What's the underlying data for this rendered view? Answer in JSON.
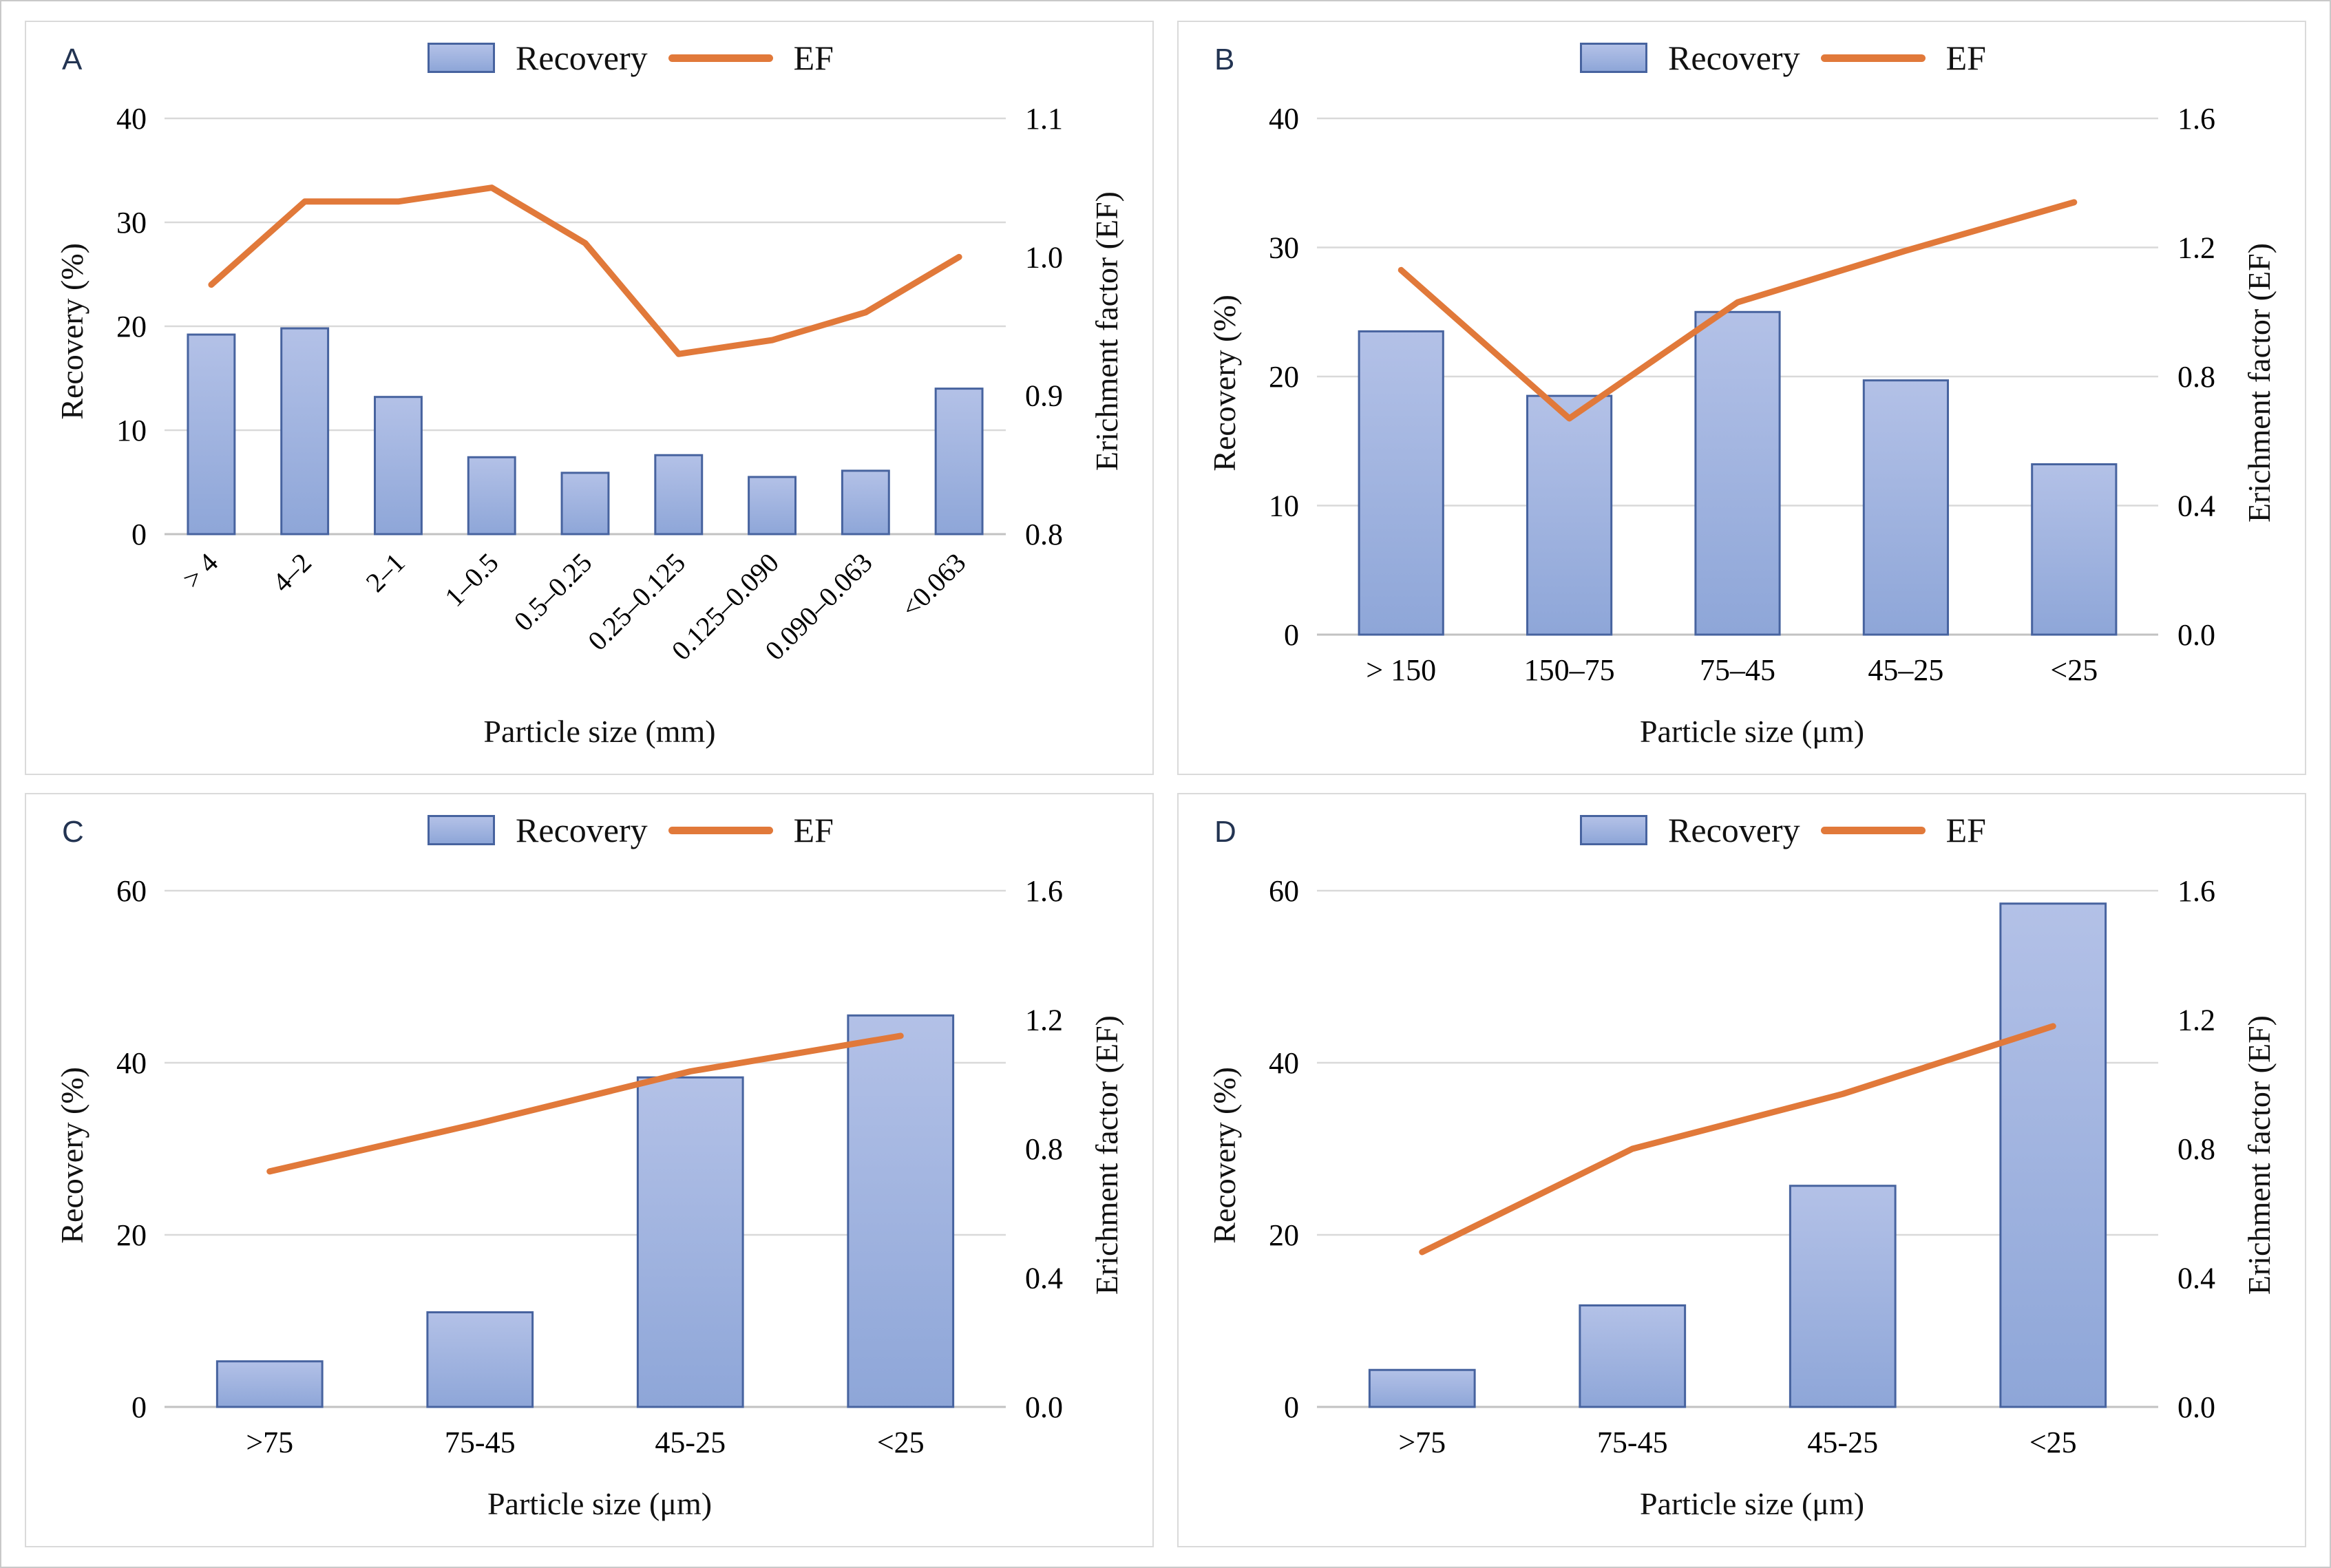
{
  "legend": {
    "recovery_label": "Recovery",
    "ef_label": "EF"
  },
  "colors": {
    "bar_fill_top": "#b3c1e7",
    "bar_fill_bottom": "#8ea6d8",
    "bar_border": "#47639f",
    "line": "#e1793a",
    "gridline": "#d9d9d9",
    "baseline": "#c2c2c2",
    "text": "#000000"
  },
  "chart_data": [
    {
      "panel_label": "A",
      "type": "bar",
      "categories": [
        "> 4",
        "4–2",
        "2–1",
        "1–0.5",
        "0.5–0.25",
        "0.25–0.125",
        "0.125–0.090",
        "0.090–0.063",
        "<0.063"
      ],
      "series": [
        {
          "name": "Recovery",
          "type": "bar",
          "axis": "left",
          "values": [
            19.2,
            19.8,
            13.2,
            7.4,
            5.9,
            7.6,
            5.5,
            6.1,
            14.0
          ]
        },
        {
          "name": "EF",
          "type": "line",
          "axis": "right",
          "values": [
            0.98,
            1.04,
            1.04,
            1.05,
            1.01,
            0.93,
            0.94,
            0.96,
            1.0
          ]
        }
      ],
      "left_axis": {
        "title": "Recovery (%)",
        "min": 0,
        "max": 40,
        "ticks": [
          0,
          10,
          20,
          30,
          40
        ]
      },
      "right_axis": {
        "title": "Erichment factor (EF)",
        "min": 0.8,
        "max": 1.1,
        "ticks": [
          0.8,
          0.9,
          1.0,
          1.1
        ]
      },
      "x_title": "Particle size (mm)",
      "rotated_x_labels": true,
      "grid": "horizontal-on",
      "legend_position": "top-center"
    },
    {
      "panel_label": "B",
      "type": "bar",
      "categories": [
        "> 150",
        "150–75",
        "75–45",
        "45–25",
        "<25"
      ],
      "series": [
        {
          "name": "Recovery",
          "type": "bar",
          "axis": "left",
          "values": [
            23.5,
            18.5,
            25.0,
            19.7,
            13.2
          ]
        },
        {
          "name": "EF",
          "type": "line",
          "axis": "right",
          "values": [
            1.13,
            0.67,
            1.03,
            1.19,
            1.34
          ]
        }
      ],
      "left_axis": {
        "title": "Recovery (%)",
        "min": 0,
        "max": 40,
        "ticks": [
          0,
          10,
          20,
          30,
          40
        ]
      },
      "right_axis": {
        "title": "Erichment factor (EF)",
        "min": 0.0,
        "max": 1.6,
        "ticks": [
          0.0,
          0.4,
          0.8,
          1.2,
          1.6
        ]
      },
      "x_title": "Particle size (μm)",
      "rotated_x_labels": false,
      "grid": "horizontal-on",
      "legend_position": "top-center"
    },
    {
      "panel_label": "C",
      "type": "bar",
      "categories": [
        ">75",
        "75-45",
        "45-25",
        "<25"
      ],
      "series": [
        {
          "name": "Recovery",
          "type": "bar",
          "axis": "left",
          "values": [
            5.3,
            11.0,
            38.3,
            45.5
          ]
        },
        {
          "name": "EF",
          "type": "line",
          "axis": "right",
          "values": [
            0.73,
            0.88,
            1.04,
            1.15
          ]
        }
      ],
      "left_axis": {
        "title": "Recovery (%)",
        "min": 0,
        "max": 60,
        "ticks": [
          0,
          20,
          40,
          60
        ]
      },
      "right_axis": {
        "title": "Erichment factor (EF)",
        "min": 0.0,
        "max": 1.6,
        "ticks": [
          0.0,
          0.4,
          0.8,
          1.2,
          1.6
        ]
      },
      "x_title": "Particle size (μm)",
      "rotated_x_labels": false,
      "grid": "horizontal-on",
      "legend_position": "top-center"
    },
    {
      "panel_label": "D",
      "type": "bar",
      "categories": [
        ">75",
        "75-45",
        "45-25",
        "<25"
      ],
      "series": [
        {
          "name": "Recovery",
          "type": "bar",
          "axis": "left",
          "values": [
            4.3,
            11.8,
            25.7,
            58.5
          ]
        },
        {
          "name": "EF",
          "type": "line",
          "axis": "right",
          "values": [
            0.48,
            0.8,
            0.97,
            1.18
          ]
        }
      ],
      "left_axis": {
        "title": "Recovery (%)",
        "min": 0,
        "max": 60,
        "ticks": [
          0,
          20,
          40,
          60
        ]
      },
      "right_axis": {
        "title": "Erichment factor (EF)",
        "min": 0.0,
        "max": 1.6,
        "ticks": [
          0.0,
          0.4,
          0.8,
          1.2,
          1.6
        ]
      },
      "x_title": "Particle size (μm)",
      "rotated_x_labels": false,
      "grid": "horizontal-on",
      "legend_position": "top-center"
    }
  ]
}
